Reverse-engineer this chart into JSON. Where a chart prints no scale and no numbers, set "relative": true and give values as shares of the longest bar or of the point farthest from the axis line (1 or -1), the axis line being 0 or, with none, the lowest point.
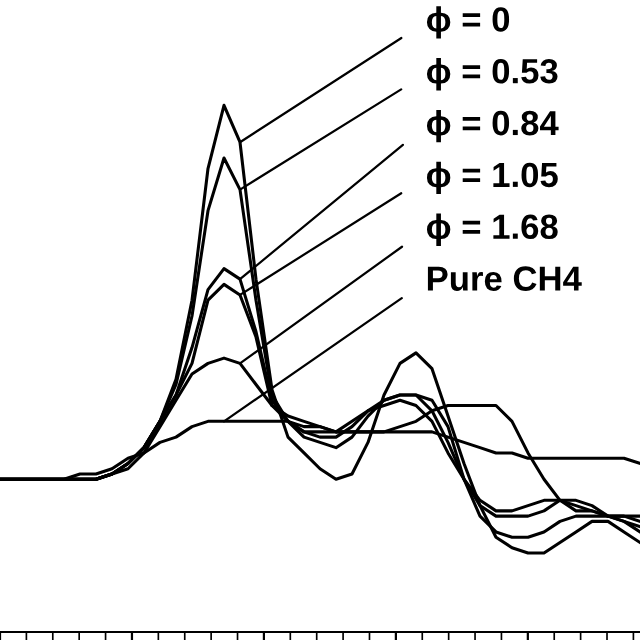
{
  "chart_data": {
    "type": "line",
    "relative": true,
    "line_style": "solid",
    "marker": "none",
    "grid": false,
    "legend": false,
    "categories": [
      null,
      null,
      null,
      null,
      null,
      null,
      null,
      null,
      null,
      null,
      null,
      null,
      null,
      null,
      null,
      null,
      null,
      null,
      null,
      null,
      null,
      null,
      null,
      null,
      null,
      null,
      null,
      null,
      null,
      null,
      null,
      null,
      null,
      null,
      null,
      null,
      null,
      null,
      null,
      null,
      null
    ],
    "series": [
      {
        "name": "ϕ = 0",
        "color": "#000000",
        "values": [
          0.29,
          0.29,
          0.29,
          0.29,
          0.29,
          0.29,
          0.29,
          0.3,
          0.32,
          0.35,
          0.4,
          0.48,
          0.63,
          0.88,
          1.0,
          0.93,
          0.67,
          0.46,
          0.37,
          0.34,
          0.31,
          0.29,
          0.3,
          0.36,
          0.45,
          0.51,
          0.53,
          0.5,
          0.41,
          0.32,
          0.24,
          0.18,
          0.16,
          0.15,
          0.15,
          0.17,
          0.19,
          0.21,
          0.21,
          0.19,
          0.17
        ]
      },
      {
        "name": "ϕ = 0.53",
        "color": "#000000",
        "values": [
          0.29,
          0.29,
          0.29,
          0.29,
          0.29,
          0.29,
          0.29,
          0.3,
          0.32,
          0.35,
          0.4,
          0.47,
          0.6,
          0.8,
          0.9,
          0.84,
          0.63,
          0.45,
          0.4,
          0.37,
          0.36,
          0.35,
          0.37,
          0.41,
          0.44,
          0.45,
          0.45,
          0.44,
          0.39,
          0.29,
          0.22,
          0.19,
          0.18,
          0.18,
          0.19,
          0.21,
          0.22,
          0.22,
          0.22,
          0.21,
          0.19
        ]
      },
      {
        "name": "ϕ = 0.84",
        "color": "#000000",
        "values": [
          0.29,
          0.29,
          0.29,
          0.29,
          0.29,
          0.29,
          0.29,
          0.3,
          0.32,
          0.35,
          0.4,
          0.45,
          0.54,
          0.65,
          0.69,
          0.67,
          0.57,
          0.44,
          0.4,
          0.38,
          0.37,
          0.37,
          0.39,
          0.42,
          0.44,
          0.45,
          0.45,
          0.42,
          0.36,
          0.29,
          0.24,
          0.22,
          0.22,
          0.22,
          0.23,
          0.25,
          0.25,
          0.24,
          0.22,
          0.22,
          0.21
        ]
      },
      {
        "name": "ϕ = 1.05",
        "color": "#000000",
        "values": [
          0.29,
          0.29,
          0.29,
          0.29,
          0.29,
          0.29,
          0.29,
          0.3,
          0.32,
          0.35,
          0.4,
          0.45,
          0.51,
          0.63,
          0.66,
          0.64,
          0.56,
          0.43,
          0.4,
          0.38,
          0.38,
          0.38,
          0.4,
          0.42,
          0.43,
          0.44,
          0.43,
          0.4,
          0.34,
          0.29,
          0.25,
          0.23,
          0.23,
          0.24,
          0.25,
          0.25,
          0.24,
          0.23,
          0.22,
          0.21,
          0.2
        ]
      },
      {
        "name": "ϕ = 1.68",
        "color": "#000000",
        "values": [
          0.29,
          0.29,
          0.29,
          0.29,
          0.29,
          0.29,
          0.29,
          0.3,
          0.31,
          0.34,
          0.39,
          0.44,
          0.49,
          0.51,
          0.52,
          0.51,
          0.47,
          0.43,
          0.41,
          0.4,
          0.39,
          0.38,
          0.38,
          0.38,
          0.38,
          0.39,
          0.4,
          0.42,
          0.43,
          0.43,
          0.43,
          0.43,
          0.4,
          0.34,
          0.29,
          0.25,
          0.23,
          0.23,
          0.22,
          0.22,
          0.22
        ]
      },
      {
        "name": "Pure CH4",
        "color": "#000000",
        "values": [
          0.29,
          0.29,
          0.29,
          0.29,
          0.29,
          0.3,
          0.3,
          0.31,
          0.33,
          0.34,
          0.36,
          0.37,
          0.39,
          0.4,
          0.4,
          0.4,
          0.4,
          0.4,
          0.4,
          0.39,
          0.39,
          0.38,
          0.38,
          0.38,
          0.38,
          0.38,
          0.38,
          0.38,
          0.37,
          0.36,
          0.35,
          0.34,
          0.34,
          0.33,
          0.33,
          0.33,
          0.33,
          0.33,
          0.33,
          0.33,
          0.32
        ]
      }
    ]
  }
}
